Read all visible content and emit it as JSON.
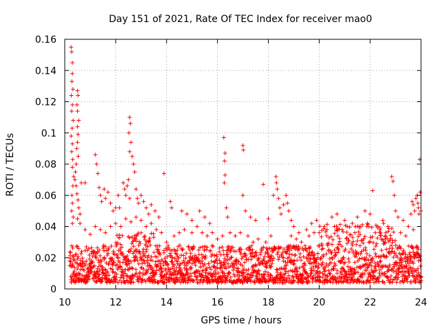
{
  "chart_data": {
    "type": "scatter",
    "title": "Day 151 of 2021, Rate Of TEC Index for receiver mao0",
    "xlabel": "GPS time / hours",
    "ylabel": "ROTI / TECUs",
    "xlim": [
      10,
      24
    ],
    "ylim": [
      0,
      0.16
    ],
    "x_ticks": [
      10,
      12,
      14,
      16,
      18,
      20,
      22,
      24
    ],
    "x_tick_labels": [
      "10",
      "12",
      "14",
      "16",
      "18",
      "20",
      "22",
      "24"
    ],
    "y_ticks": [
      0,
      0.02,
      0.04,
      0.06,
      0.08,
      0.1,
      0.12,
      0.14,
      0.16
    ],
    "y_tick_labels": [
      "0",
      "0.02",
      "0.04",
      "0.06",
      "0.08",
      "0.1",
      "0.12",
      "0.14",
      "0.16"
    ],
    "grid": true,
    "marker": "+",
    "color": "#ff0000",
    "series": [
      {
        "name": "ROTI",
        "points": [
          [
            10.25,
            0.155
          ],
          [
            10.27,
            0.152
          ],
          [
            10.3,
            0.145
          ],
          [
            10.3,
            0.138
          ],
          [
            10.28,
            0.133
          ],
          [
            10.32,
            0.128
          ],
          [
            10.26,
            0.124
          ],
          [
            10.3,
            0.118
          ],
          [
            10.27,
            0.114
          ],
          [
            10.33,
            0.108
          ],
          [
            10.29,
            0.103
          ],
          [
            10.25,
            0.098
          ],
          [
            10.3,
            0.093
          ],
          [
            10.27,
            0.088
          ],
          [
            10.31,
            0.083
          ],
          [
            10.3,
            0.078
          ],
          [
            10.35,
            0.072
          ],
          [
            10.32,
            0.066
          ],
          [
            10.28,
            0.06
          ],
          [
            10.3,
            0.055
          ],
          [
            10.27,
            0.05
          ],
          [
            10.33,
            0.046
          ],
          [
            10.3,
            0.042
          ],
          [
            10.5,
            0.127
          ],
          [
            10.52,
            0.124
          ],
          [
            10.48,
            0.118
          ],
          [
            10.5,
            0.114
          ],
          [
            10.55,
            0.108
          ],
          [
            10.5,
            0.104
          ],
          [
            10.52,
            0.099
          ],
          [
            10.5,
            0.094
          ],
          [
            10.47,
            0.09
          ],
          [
            10.53,
            0.085
          ],
          [
            10.45,
            0.08
          ],
          [
            10.42,
            0.075
          ],
          [
            10.4,
            0.07
          ],
          [
            10.45,
            0.066
          ],
          [
            10.48,
            0.061
          ],
          [
            10.52,
            0.057
          ],
          [
            10.55,
            0.052
          ],
          [
            10.6,
            0.048
          ],
          [
            10.65,
            0.068
          ],
          [
            10.8,
            0.068
          ],
          [
            11.2,
            0.086
          ],
          [
            11.25,
            0.08
          ],
          [
            11.3,
            0.074
          ],
          [
            11.35,
            0.065
          ],
          [
            11.4,
            0.06
          ],
          [
            11.45,
            0.056
          ],
          [
            11.55,
            0.064
          ],
          [
            11.6,
            0.058
          ],
          [
            11.7,
            0.062
          ],
          [
            11.8,
            0.055
          ],
          [
            11.9,
            0.05
          ],
          [
            12.0,
            0.052
          ],
          [
            12.1,
            0.06
          ],
          [
            12.15,
            0.052
          ],
          [
            12.3,
            0.068
          ],
          [
            12.35,
            0.064
          ],
          [
            12.4,
            0.06
          ],
          [
            12.45,
            0.066
          ],
          [
            12.5,
            0.07
          ],
          [
            12.55,
            0.058
          ],
          [
            12.55,
            0.11
          ],
          [
            12.58,
            0.106
          ],
          [
            12.52,
            0.1
          ],
          [
            12.6,
            0.094
          ],
          [
            12.55,
            0.088
          ],
          [
            12.65,
            0.085
          ],
          [
            12.7,
            0.08
          ],
          [
            12.75,
            0.075
          ],
          [
            12.8,
            0.064
          ],
          [
            12.85,
            0.058
          ],
          [
            12.9,
            0.055
          ],
          [
            13.0,
            0.06
          ],
          [
            13.1,
            0.056
          ],
          [
            13.2,
            0.052
          ],
          [
            13.3,
            0.048
          ],
          [
            13.4,
            0.054
          ],
          [
            13.55,
            0.05
          ],
          [
            13.7,
            0.046
          ],
          [
            13.9,
            0.074
          ],
          [
            14.15,
            0.056
          ],
          [
            14.2,
            0.052
          ],
          [
            14.6,
            0.05
          ],
          [
            14.8,
            0.048
          ],
          [
            15.0,
            0.044
          ],
          [
            15.3,
            0.05
          ],
          [
            15.5,
            0.046
          ],
          [
            15.7,
            0.042
          ],
          [
            16.25,
            0.097
          ],
          [
            16.3,
            0.087
          ],
          [
            16.28,
            0.082
          ],
          [
            16.3,
            0.073
          ],
          [
            16.27,
            0.068
          ],
          [
            16.35,
            0.052
          ],
          [
            16.4,
            0.046
          ],
          [
            17.0,
            0.092
          ],
          [
            17.02,
            0.089
          ],
          [
            17.0,
            0.06
          ],
          [
            17.1,
            0.05
          ],
          [
            17.3,
            0.046
          ],
          [
            17.5,
            0.044
          ],
          [
            17.8,
            0.067
          ],
          [
            18.0,
            0.045
          ],
          [
            18.2,
            0.06
          ],
          [
            18.3,
            0.072
          ],
          [
            18.32,
            0.068
          ],
          [
            18.35,
            0.064
          ],
          [
            18.4,
            0.058
          ],
          [
            18.45,
            0.052
          ],
          [
            18.5,
            0.048
          ],
          [
            18.6,
            0.054
          ],
          [
            18.7,
            0.06
          ],
          [
            18.75,
            0.055
          ],
          [
            18.8,
            0.05
          ],
          [
            18.9,
            0.044
          ],
          [
            19.0,
            0.04
          ],
          [
            19.2,
            0.036
          ],
          [
            19.5,
            0.038
          ],
          [
            19.7,
            0.042
          ],
          [
            19.9,
            0.044
          ],
          [
            20.2,
            0.04
          ],
          [
            20.5,
            0.046
          ],
          [
            20.7,
            0.048
          ],
          [
            21.0,
            0.044
          ],
          [
            21.3,
            0.042
          ],
          [
            21.5,
            0.046
          ],
          [
            21.8,
            0.05
          ],
          [
            22.0,
            0.048
          ],
          [
            22.1,
            0.063
          ],
          [
            22.3,
            0.04
          ],
          [
            22.5,
            0.044
          ],
          [
            22.7,
            0.04
          ],
          [
            22.85,
            0.072
          ],
          [
            22.9,
            0.069
          ],
          [
            22.95,
            0.06
          ],
          [
            23.0,
            0.05
          ],
          [
            23.1,
            0.046
          ],
          [
            23.3,
            0.044
          ],
          [
            23.5,
            0.04
          ],
          [
            23.6,
            0.048
          ],
          [
            23.65,
            0.056
          ],
          [
            23.7,
            0.054
          ],
          [
            23.75,
            0.05
          ],
          [
            23.8,
            0.058
          ],
          [
            23.85,
            0.06
          ],
          [
            23.88,
            0.055
          ],
          [
            23.9,
            0.052
          ],
          [
            23.92,
            0.048
          ],
          [
            23.95,
            0.083
          ],
          [
            23.97,
            0.062
          ],
          [
            24.0,
            0.05
          ],
          [
            10.5,
            0.045
          ],
          [
            10.6,
            0.042
          ],
          [
            10.8,
            0.038
          ],
          [
            11.0,
            0.035
          ],
          [
            11.2,
            0.04
          ],
          [
            11.4,
            0.038
          ],
          [
            11.6,
            0.036
          ],
          [
            11.8,
            0.04
          ],
          [
            12.0,
            0.042
          ],
          [
            12.2,
            0.04
          ],
          [
            12.4,
            0.045
          ],
          [
            12.6,
            0.043
          ],
          [
            12.8,
            0.046
          ],
          [
            13.0,
            0.044
          ],
          [
            13.2,
            0.04
          ],
          [
            13.4,
            0.042
          ],
          [
            13.6,
            0.038
          ],
          [
            13.8,
            0.036
          ],
          [
            14.0,
            0.03
          ],
          [
            14.3,
            0.034
          ],
          [
            14.5,
            0.036
          ],
          [
            14.7,
            0.038
          ],
          [
            15.0,
            0.036
          ],
          [
            15.2,
            0.04
          ],
          [
            15.4,
            0.036
          ],
          [
            15.6,
            0.034
          ],
          [
            15.8,
            0.036
          ],
          [
            16.0,
            0.032
          ],
          [
            16.2,
            0.034
          ],
          [
            16.5,
            0.036
          ],
          [
            16.7,
            0.034
          ],
          [
            16.9,
            0.036
          ],
          [
            17.2,
            0.034
          ],
          [
            17.4,
            0.03
          ],
          [
            17.6,
            0.032
          ],
          [
            17.9,
            0.03
          ],
          [
            18.1,
            0.034
          ],
          [
            18.9,
            0.034
          ],
          [
            19.1,
            0.032
          ],
          [
            19.3,
            0.03
          ],
          [
            19.6,
            0.034
          ],
          [
            19.8,
            0.036
          ],
          [
            20.0,
            0.036
          ],
          [
            20.3,
            0.038
          ],
          [
            20.6,
            0.04
          ],
          [
            20.9,
            0.038
          ],
          [
            21.1,
            0.04
          ],
          [
            21.4,
            0.036
          ],
          [
            21.6,
            0.04
          ],
          [
            21.9,
            0.042
          ],
          [
            22.2,
            0.036
          ],
          [
            22.4,
            0.038
          ],
          [
            22.6,
            0.034
          ],
          [
            23.2,
            0.036
          ],
          [
            23.4,
            0.034
          ],
          [
            23.7,
            0.038
          ]
        ]
      }
    ],
    "band_description": "Dense band of points near baseline spanning hours 10.2–24.0, roughly ROTI 0.003–0.03 (upper edge rising to ~0.045 between hours 20 and 23)"
  }
}
